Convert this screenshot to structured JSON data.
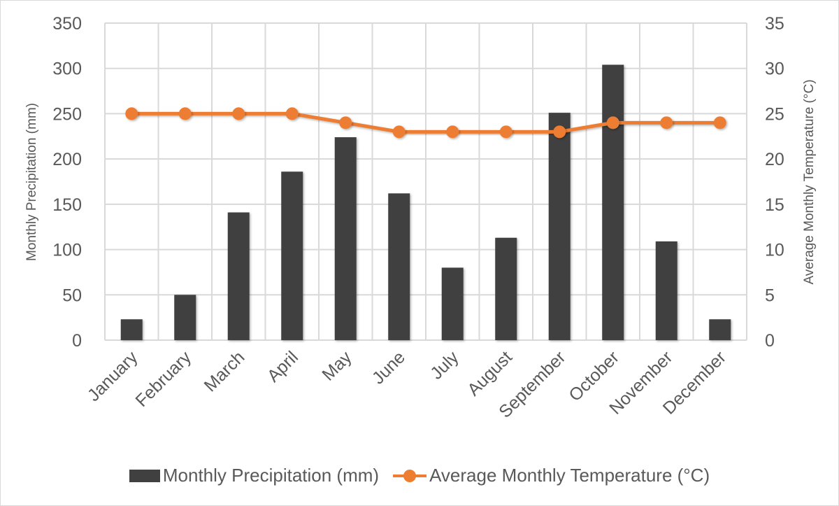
{
  "chart_data": {
    "type": "bar+line",
    "categories": [
      "January",
      "February",
      "March",
      "April",
      "May",
      "June",
      "July",
      "August",
      "September",
      "October",
      "November",
      "December"
    ],
    "series": [
      {
        "name": "Monthly Precipitation  (mm)",
        "type": "bar",
        "axis": "left",
        "color": "#404040",
        "values": [
          23,
          50,
          141,
          186,
          224,
          162,
          80,
          113,
          251,
          304,
          109,
          23
        ]
      },
      {
        "name": "Average Monthly  Temperature (°C)",
        "type": "line",
        "axis": "right",
        "color": "#ed7d31",
        "values": [
          25,
          25,
          25,
          25,
          24,
          23,
          23,
          23,
          23,
          24,
          24,
          24
        ]
      }
    ],
    "ylabel": "Monthly Precipitation  (mm)",
    "y2label": "Average Monthly  Temperature (°C)",
    "ylim": [
      0,
      350
    ],
    "y2lim": [
      0,
      35
    ],
    "yticks": [
      "0",
      "50",
      "100",
      "150",
      "200",
      "250",
      "300",
      "350"
    ],
    "y2ticks": [
      "0",
      "5",
      "10",
      "15",
      "20",
      "25",
      "30",
      "35"
    ],
    "grid": true,
    "legend": "bottom"
  }
}
